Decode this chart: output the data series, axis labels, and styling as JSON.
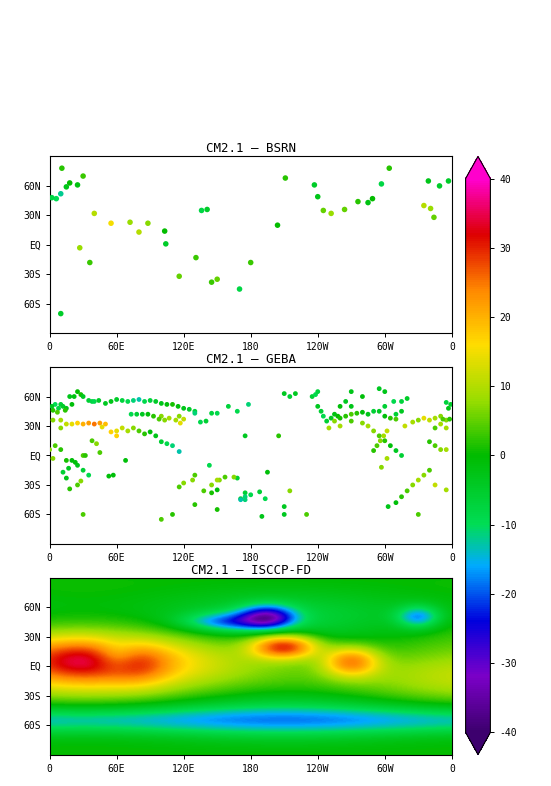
{
  "titles": [
    "CM2.1 – BSRN",
    "CM2.1 – GEBA",
    "CM2.1 – ISCCP-FD"
  ],
  "vmin": -40,
  "vmax": 40,
  "xlabel_ticks": [
    0,
    60,
    120,
    180,
    240,
    300,
    360
  ],
  "xlabel_labels": [
    "0",
    "60E",
    "120E",
    "180",
    "120W",
    "60W",
    "0"
  ],
  "yticks": [
    -60,
    -30,
    0,
    30,
    60
  ],
  "ylabels": [
    "60S",
    "30S",
    "EQ",
    "30N",
    "60N"
  ],
  "colorbar_ticks": [
    -40,
    -30,
    -20,
    -10,
    0,
    10,
    20,
    30,
    40
  ],
  "colorbar_labels": [
    "-40",
    "-30",
    "-20",
    "-10",
    "0",
    "10",
    "20",
    "30",
    "40"
  ],
  "cmap_colors": [
    [
      0.0,
      "#3d006e"
    ],
    [
      0.1,
      "#7b00c8"
    ],
    [
      0.2,
      "#0000dd"
    ],
    [
      0.3,
      "#00aaff"
    ],
    [
      0.375,
      "#00dd55"
    ],
    [
      0.5,
      "#00bb00"
    ],
    [
      0.6,
      "#99dd00"
    ],
    [
      0.7,
      "#ffdd00"
    ],
    [
      0.8,
      "#ff8800"
    ],
    [
      0.9,
      "#dd0000"
    ],
    [
      1.0,
      "#ff00cc"
    ]
  ],
  "bsrn_stations": [
    {
      "lon": 357.0,
      "lat": 65.0,
      "val": -5
    },
    {
      "lon": 339.0,
      "lat": 65.0,
      "val": -3
    },
    {
      "lon": 10.0,
      "lat": 52.0,
      "val": -12
    },
    {
      "lon": 6.0,
      "lat": 47.0,
      "val": -10
    },
    {
      "lon": 2.0,
      "lat": 48.0,
      "val": -8
    },
    {
      "lon": 349.0,
      "lat": 60.0,
      "val": -5
    },
    {
      "lon": 15.0,
      "lat": 59.0,
      "val": -3
    },
    {
      "lon": 25.0,
      "lat": 61.0,
      "val": -2
    },
    {
      "lon": 18.0,
      "lat": 63.0,
      "val": 0
    },
    {
      "lon": 30.0,
      "lat": 70.0,
      "val": 3
    },
    {
      "lon": 11.0,
      "lat": 78.0,
      "val": 2
    },
    {
      "lon": 344.0,
      "lat": 28.0,
      "val": 5
    },
    {
      "lon": 27.0,
      "lat": -3.0,
      "val": 8
    },
    {
      "lon": 40.0,
      "lat": 32.0,
      "val": 10
    },
    {
      "lon": 36.0,
      "lat": -18.0,
      "val": 3
    },
    {
      "lon": 55.0,
      "lat": 22.0,
      "val": 15
    },
    {
      "lon": 72.0,
      "lat": 23.0,
      "val": 8
    },
    {
      "lon": 80.0,
      "lat": 13.0,
      "val": 10
    },
    {
      "lon": 88.0,
      "lat": 22.0,
      "val": 7
    },
    {
      "lon": 103.0,
      "lat": 14.0,
      "val": 0
    },
    {
      "lon": 104.0,
      "lat": 1.0,
      "val": -5
    },
    {
      "lon": 116.0,
      "lat": -32.0,
      "val": 5
    },
    {
      "lon": 131.0,
      "lat": -13.0,
      "val": 3
    },
    {
      "lon": 150.0,
      "lat": -35.0,
      "val": 5
    },
    {
      "lon": 145.0,
      "lat": -38.0,
      "val": 3
    },
    {
      "lon": 141.0,
      "lat": 36.0,
      "val": -5
    },
    {
      "lon": 136.0,
      "lat": 35.0,
      "val": -8
    },
    {
      "lon": 180.0,
      "lat": -18.0,
      "val": 3
    },
    {
      "lon": 204.0,
      "lat": 20.0,
      "val": 0
    },
    {
      "lon": 211.0,
      "lat": 68.0,
      "val": 2
    },
    {
      "lon": 237.0,
      "lat": 61.0,
      "val": -5
    },
    {
      "lon": 240.0,
      "lat": 49.0,
      "val": -3
    },
    {
      "lon": 245.0,
      "lat": 35.0,
      "val": 5
    },
    {
      "lon": 252.0,
      "lat": 32.0,
      "val": 8
    },
    {
      "lon": 264.0,
      "lat": 36.0,
      "val": 5
    },
    {
      "lon": 276.0,
      "lat": 44.0,
      "val": 2
    },
    {
      "lon": 285.0,
      "lat": 43.0,
      "val": -2
    },
    {
      "lon": 289.0,
      "lat": 47.0,
      "val": 0
    },
    {
      "lon": 297.0,
      "lat": 62.0,
      "val": -8
    },
    {
      "lon": 304.0,
      "lat": 78.0,
      "val": 2
    },
    {
      "lon": 335.0,
      "lat": 40.0,
      "val": 10
    },
    {
      "lon": 341.0,
      "lat": 37.0,
      "val": 8
    },
    {
      "lon": 10.0,
      "lat": -70.0,
      "val": -5
    },
    {
      "lon": 170.0,
      "lat": -45.0,
      "val": -8
    }
  ],
  "geba_stations": [
    {
      "lon": 5.0,
      "lat": 52.0,
      "val": -10
    },
    {
      "lon": 8.0,
      "lat": 48.0,
      "val": -8
    },
    {
      "lon": 10.0,
      "lat": 52.0,
      "val": -6
    },
    {
      "lon": 12.0,
      "lat": 50.0,
      "val": -5
    },
    {
      "lon": 15.0,
      "lat": 48.0,
      "val": -3
    },
    {
      "lon": 20.0,
      "lat": 52.0,
      "val": -1
    },
    {
      "lon": 14.0,
      "lat": 46.0,
      "val": 2
    },
    {
      "lon": 7.0,
      "lat": 44.0,
      "val": 4
    },
    {
      "lon": 3.0,
      "lat": 46.0,
      "val": 2
    },
    {
      "lon": 2.0,
      "lat": 50.0,
      "val": -4
    },
    {
      "lon": 357.0,
      "lat": 48.0,
      "val": -3
    },
    {
      "lon": 355.0,
      "lat": 54.0,
      "val": -7
    },
    {
      "lon": 359.0,
      "lat": 52.0,
      "val": -5
    },
    {
      "lon": 18.0,
      "lat": 60.0,
      "val": -3
    },
    {
      "lon": 22.0,
      "lat": 60.0,
      "val": -2
    },
    {
      "lon": 25.0,
      "lat": 65.0,
      "val": 0
    },
    {
      "lon": 28.0,
      "lat": 62.0,
      "val": 1
    },
    {
      "lon": 30.0,
      "lat": 60.0,
      "val": -4
    },
    {
      "lon": 35.0,
      "lat": 56.0,
      "val": -6
    },
    {
      "lon": 38.0,
      "lat": 55.0,
      "val": -8
    },
    {
      "lon": 40.0,
      "lat": 55.0,
      "val": -9
    },
    {
      "lon": 44.0,
      "lat": 56.0,
      "val": -5
    },
    {
      "lon": 50.0,
      "lat": 53.0,
      "val": -4
    },
    {
      "lon": 55.0,
      "lat": 55.0,
      "val": -3
    },
    {
      "lon": 60.0,
      "lat": 57.0,
      "val": -5
    },
    {
      "lon": 65.0,
      "lat": 56.0,
      "val": -7
    },
    {
      "lon": 70.0,
      "lat": 55.0,
      "val": -9
    },
    {
      "lon": 75.0,
      "lat": 56.0,
      "val": -11
    },
    {
      "lon": 80.0,
      "lat": 57.0,
      "val": -13
    },
    {
      "lon": 85.0,
      "lat": 55.0,
      "val": -9
    },
    {
      "lon": 90.0,
      "lat": 56.0,
      "val": -7
    },
    {
      "lon": 95.0,
      "lat": 55.0,
      "val": -5
    },
    {
      "lon": 100.0,
      "lat": 53.0,
      "val": -3
    },
    {
      "lon": 105.0,
      "lat": 52.0,
      "val": -1
    },
    {
      "lon": 110.0,
      "lat": 52.0,
      "val": 1
    },
    {
      "lon": 115.0,
      "lat": 50.0,
      "val": -1
    },
    {
      "lon": 120.0,
      "lat": 48.0,
      "val": -3
    },
    {
      "lon": 125.0,
      "lat": 47.0,
      "val": -5
    },
    {
      "lon": 130.0,
      "lat": 45.0,
      "val": -7
    },
    {
      "lon": 3.0,
      "lat": 36.0,
      "val": 7
    },
    {
      "lon": 10.0,
      "lat": 36.0,
      "val": 9
    },
    {
      "lon": 15.0,
      "lat": 32.0,
      "val": 11
    },
    {
      "lon": 20.0,
      "lat": 32.0,
      "val": 14
    },
    {
      "lon": 25.0,
      "lat": 33.0,
      "val": 17
    },
    {
      "lon": 30.0,
      "lat": 32.0,
      "val": 20
    },
    {
      "lon": 35.0,
      "lat": 33.0,
      "val": 22
    },
    {
      "lon": 40.0,
      "lat": 32.0,
      "val": 25
    },
    {
      "lon": 45.0,
      "lat": 33.0,
      "val": 22
    },
    {
      "lon": 50.0,
      "lat": 32.0,
      "val": 19
    },
    {
      "lon": 55.0,
      "lat": 24.0,
      "val": 17
    },
    {
      "lon": 60.0,
      "lat": 25.0,
      "val": 14
    },
    {
      "lon": 65.0,
      "lat": 28.0,
      "val": 11
    },
    {
      "lon": 70.0,
      "lat": 25.0,
      "val": 9
    },
    {
      "lon": 75.0,
      "lat": 28.0,
      "val": 7
    },
    {
      "lon": 80.0,
      "lat": 25.0,
      "val": 4
    },
    {
      "lon": 85.0,
      "lat": 22.0,
      "val": 2
    },
    {
      "lon": 90.0,
      "lat": 24.0,
      "val": -1
    },
    {
      "lon": 95.0,
      "lat": 20.0,
      "val": -3
    },
    {
      "lon": 100.0,
      "lat": 14.0,
      "val": -6
    },
    {
      "lon": 105.0,
      "lat": 12.0,
      "val": -9
    },
    {
      "lon": 110.0,
      "lat": 10.0,
      "val": -11
    },
    {
      "lon": 116.0,
      "lat": 4.0,
      "val": -13
    },
    {
      "lon": 355.0,
      "lat": 36.0,
      "val": 7
    },
    {
      "lon": 350.0,
      "lat": 32.0,
      "val": 9
    },
    {
      "lon": 345.0,
      "lat": 28.0,
      "val": 4
    },
    {
      "lon": 10.0,
      "lat": 6.0,
      "val": 2
    },
    {
      "lon": 5.0,
      "lat": 10.0,
      "val": 4
    },
    {
      "lon": 0.0,
      "lat": 6.0,
      "val": 7
    },
    {
      "lon": 355.0,
      "lat": 6.0,
      "val": 9
    },
    {
      "lon": 350.0,
      "lat": 6.0,
      "val": 7
    },
    {
      "lon": 345.0,
      "lat": 10.0,
      "val": 4
    },
    {
      "lon": 340.0,
      "lat": 14.0,
      "val": 2
    },
    {
      "lon": 15.0,
      "lat": -5.0,
      "val": 1
    },
    {
      "lon": 20.0,
      "lat": -5.0,
      "val": -1
    },
    {
      "lon": 25.0,
      "lat": -10.0,
      "val": -3
    },
    {
      "lon": 30.0,
      "lat": -15.0,
      "val": -6
    },
    {
      "lon": 35.0,
      "lat": -20.0,
      "val": -9
    },
    {
      "lon": 18.0,
      "lat": -34.0,
      "val": 2
    },
    {
      "lon": 25.0,
      "lat": -30.0,
      "val": 4
    },
    {
      "lon": 28.0,
      "lat": -26.0,
      "val": 7
    },
    {
      "lon": 116.0,
      "lat": -32.0,
      "val": 4
    },
    {
      "lon": 120.0,
      "lat": -28.0,
      "val": 7
    },
    {
      "lon": 130.0,
      "lat": -20.0,
      "val": 4
    },
    {
      "lon": 145.0,
      "lat": -38.0,
      "val": 1
    },
    {
      "lon": 150.0,
      "lat": -35.0,
      "val": -1
    },
    {
      "lon": 140.0,
      "lat": 35.0,
      "val": -6
    },
    {
      "lon": 135.0,
      "lat": 34.0,
      "val": -9
    },
    {
      "lon": 145.0,
      "lat": 43.0,
      "val": -7
    },
    {
      "lon": 240.0,
      "lat": 50.0,
      "val": -4
    },
    {
      "lon": 243.0,
      "lat": 45.0,
      "val": -6
    },
    {
      "lon": 245.0,
      "lat": 40.0,
      "val": -9
    },
    {
      "lon": 248.0,
      "lat": 35.0,
      "val": -6
    },
    {
      "lon": 252.0,
      "lat": 38.0,
      "val": -4
    },
    {
      "lon": 255.0,
      "lat": 42.0,
      "val": -2
    },
    {
      "lon": 258.0,
      "lat": 40.0,
      "val": 0
    },
    {
      "lon": 260.0,
      "lat": 38.0,
      "val": 1
    },
    {
      "lon": 265.0,
      "lat": 40.0,
      "val": 2
    },
    {
      "lon": 270.0,
      "lat": 42.0,
      "val": 4
    },
    {
      "lon": 275.0,
      "lat": 43.0,
      "val": 2
    },
    {
      "lon": 280.0,
      "lat": 44.0,
      "val": -1
    },
    {
      "lon": 285.0,
      "lat": 42.0,
      "val": -3
    },
    {
      "lon": 290.0,
      "lat": 45.0,
      "val": -6
    },
    {
      "lon": 295.0,
      "lat": 45.0,
      "val": -4
    },
    {
      "lon": 300.0,
      "lat": 50.0,
      "val": -6
    },
    {
      "lon": 308.0,
      "lat": 55.0,
      "val": -9
    },
    {
      "lon": 315.0,
      "lat": 55.0,
      "val": -7
    },
    {
      "lon": 320.0,
      "lat": 58.0,
      "val": -5
    },
    {
      "lon": 260.0,
      "lat": 50.0,
      "val": -1
    },
    {
      "lon": 265.0,
      "lat": 55.0,
      "val": -4
    },
    {
      "lon": 270.0,
      "lat": 50.0,
      "val": -3
    },
    {
      "lon": 235.0,
      "lat": 60.0,
      "val": -6
    },
    {
      "lon": 238.0,
      "lat": 62.0,
      "val": -9
    },
    {
      "lon": 240.0,
      "lat": 65.0,
      "val": -7
    },
    {
      "lon": 295.0,
      "lat": 68.0,
      "val": -4
    },
    {
      "lon": 300.0,
      "lat": 65.0,
      "val": -3
    },
    {
      "lon": 280.0,
      "lat": 60.0,
      "val": -1
    },
    {
      "lon": 303.0,
      "lat": -52.0,
      "val": -3
    },
    {
      "lon": 310.0,
      "lat": -48.0,
      "val": -1
    },
    {
      "lon": 315.0,
      "lat": -42.0,
      "val": 2
    },
    {
      "lon": 320.0,
      "lat": -36.0,
      "val": 4
    },
    {
      "lon": 325.0,
      "lat": -30.0,
      "val": 7
    },
    {
      "lon": 330.0,
      "lat": -25.0,
      "val": 9
    },
    {
      "lon": 335.0,
      "lat": -20.0,
      "val": 7
    },
    {
      "lon": 340.0,
      "lat": -15.0,
      "val": 4
    },
    {
      "lon": 290.0,
      "lat": 5.0,
      "val": 2
    },
    {
      "lon": 293.0,
      "lat": 10.0,
      "val": 4
    },
    {
      "lon": 296.0,
      "lat": 15.0,
      "val": 7
    },
    {
      "lon": 299.0,
      "lat": 20.0,
      "val": 9
    },
    {
      "lon": 302.0,
      "lat": 25.0,
      "val": 11
    },
    {
      "lon": 335.0,
      "lat": 38.0,
      "val": 14
    },
    {
      "lon": 340.0,
      "lat": 36.0,
      "val": 11
    },
    {
      "lon": 345.0,
      "lat": 38.0,
      "val": 9
    },
    {
      "lon": 350.0,
      "lat": 40.0,
      "val": 7
    },
    {
      "lon": 352.0,
      "lat": 37.0,
      "val": 4
    },
    {
      "lon": 358.0,
      "lat": 37.0,
      "val": 2
    },
    {
      "lon": 130.0,
      "lat": 43.0,
      "val": -11
    },
    {
      "lon": 150.0,
      "lat": 43.0,
      "val": -9
    },
    {
      "lon": 160.0,
      "lat": 50.0,
      "val": -7
    },
    {
      "lon": 128.0,
      "lat": -25.0,
      "val": 7
    },
    {
      "lon": 157.0,
      "lat": -22.0,
      "val": 4
    },
    {
      "lon": 171.0,
      "lat": -44.0,
      "val": -4
    },
    {
      "lon": 175.0,
      "lat": -38.0,
      "val": -6
    },
    {
      "lon": 180.0,
      "lat": -40.0,
      "val": -9
    },
    {
      "lon": 188.0,
      "lat": -37.0,
      "val": -6
    },
    {
      "lon": 193.0,
      "lat": -44.0,
      "val": -9
    },
    {
      "lon": 210.0,
      "lat": -52.0,
      "val": -4
    },
    {
      "lon": 230.0,
      "lat": -60.0,
      "val": 4
    },
    {
      "lon": 152.0,
      "lat": -25.0,
      "val": 7
    },
    {
      "lon": 100.0,
      "lat": -65.0,
      "val": 4
    },
    {
      "lon": 110.0,
      "lat": -60.0,
      "val": 2
    },
    {
      "lon": 175.0,
      "lat": -45.0,
      "val": -11
    },
    {
      "lon": 210.0,
      "lat": 63.0,
      "val": -4
    },
    {
      "lon": 215.0,
      "lat": 60.0,
      "val": -6
    },
    {
      "lon": 220.0,
      "lat": 63.0,
      "val": -4
    },
    {
      "lon": 355.0,
      "lat": 28.0,
      "val": 9
    },
    {
      "lon": 10.0,
      "lat": 28.0,
      "val": 7
    },
    {
      "lon": 47.0,
      "lat": 29.0,
      "val": 14
    },
    {
      "lon": 60.0,
      "lat": 20.0,
      "val": 17
    },
    {
      "lon": 143.0,
      "lat": -10.0,
      "val": -9
    },
    {
      "lon": 205.0,
      "lat": 20.0,
      "val": 2
    },
    {
      "lon": 175.0,
      "lat": 20.0,
      "val": -4
    },
    {
      "lon": 30.0,
      "lat": 0.0,
      "val": 4
    },
    {
      "lon": 68.0,
      "lat": -5.0,
      "val": -1
    },
    {
      "lon": 270.0,
      "lat": 65.0,
      "val": -3
    },
    {
      "lon": 250.0,
      "lat": 28.0,
      "val": 9
    },
    {
      "lon": 255.0,
      "lat": 35.0,
      "val": 7
    },
    {
      "lon": 260.0,
      "lat": 30.0,
      "val": 9
    },
    {
      "lon": 168.0,
      "lat": -23.0,
      "val": -6
    },
    {
      "lon": 215.0,
      "lat": -36.0,
      "val": 7
    },
    {
      "lon": 100.0,
      "lat": 40.0,
      "val": 7
    },
    {
      "lon": 3.0,
      "lat": -3.0,
      "val": 7
    },
    {
      "lon": 355.0,
      "lat": -35.0,
      "val": 9
    },
    {
      "lon": 345.0,
      "lat": -30.0,
      "val": 11
    },
    {
      "lon": 297.0,
      "lat": -12.0,
      "val": 7
    },
    {
      "lon": 302.0,
      "lat": -3.0,
      "val": 9
    },
    {
      "lon": 113.0,
      "lat": 36.0,
      "val": 9
    },
    {
      "lon": 116.0,
      "lat": 40.0,
      "val": 7
    },
    {
      "lon": 120.0,
      "lat": 37.0,
      "val": 11
    },
    {
      "lon": 117.0,
      "lat": 33.0,
      "val": 14
    },
    {
      "lon": 107.0,
      "lat": 38.0,
      "val": 9
    },
    {
      "lon": 103.0,
      "lat": 36.0,
      "val": 7
    },
    {
      "lon": 98.0,
      "lat": 37.0,
      "val": 4
    },
    {
      "lon": 93.0,
      "lat": 40.0,
      "val": 2
    },
    {
      "lon": 88.0,
      "lat": 42.0,
      "val": -1
    },
    {
      "lon": 83.0,
      "lat": 42.0,
      "val": -4
    },
    {
      "lon": 78.0,
      "lat": 42.0,
      "val": -6
    },
    {
      "lon": 73.0,
      "lat": 42.0,
      "val": -9
    },
    {
      "lon": 53.0,
      "lat": -21.0,
      "val": -1
    },
    {
      "lon": 45.0,
      "lat": 3.0,
      "val": 4
    },
    {
      "lon": 42.0,
      "lat": 12.0,
      "val": 7
    },
    {
      "lon": 38.0,
      "lat": 15.0,
      "val": 4
    },
    {
      "lon": 32.0,
      "lat": 0.0,
      "val": 2
    },
    {
      "lon": 23.0,
      "lat": -7.0,
      "val": -1
    },
    {
      "lon": 17.0,
      "lat": -13.0,
      "val": -4
    },
    {
      "lon": 12.0,
      "lat": -17.0,
      "val": -6
    },
    {
      "lon": 15.0,
      "lat": -23.0,
      "val": -3
    },
    {
      "lon": 318.0,
      "lat": 30.0,
      "val": 11
    },
    {
      "lon": 325.0,
      "lat": 34.0,
      "val": 9
    },
    {
      "lon": 330.0,
      "lat": 36.0,
      "val": 7
    },
    {
      "lon": 310.0,
      "lat": 37.0,
      "val": 4
    },
    {
      "lon": 305.0,
      "lat": 38.0,
      "val": 2
    },
    {
      "lon": 300.0,
      "lat": 40.0,
      "val": -1
    },
    {
      "lon": 310.0,
      "lat": 42.0,
      "val": -6
    },
    {
      "lon": 315.0,
      "lat": 45.0,
      "val": -4
    },
    {
      "lon": 270.0,
      "lat": 35.0,
      "val": 4
    },
    {
      "lon": 280.0,
      "lat": 33.0,
      "val": 7
    },
    {
      "lon": 285.0,
      "lat": 30.0,
      "val": 9
    },
    {
      "lon": 290.0,
      "lat": 25.0,
      "val": 7
    },
    {
      "lon": 295.0,
      "lat": 20.0,
      "val": 4
    },
    {
      "lon": 300.0,
      "lat": 15.0,
      "val": 2
    },
    {
      "lon": 305.0,
      "lat": 10.0,
      "val": -1
    },
    {
      "lon": 310.0,
      "lat": 5.0,
      "val": -4
    },
    {
      "lon": 315.0,
      "lat": 0.0,
      "val": -6
    },
    {
      "lon": 57.0,
      "lat": -20.0,
      "val": -1
    },
    {
      "lon": 171.0,
      "lat": -45.0,
      "val": -13
    },
    {
      "lon": 175.0,
      "lat": -42.0,
      "val": -11
    },
    {
      "lon": 138.0,
      "lat": -36.0,
      "val": 4
    },
    {
      "lon": 145.0,
      "lat": -30.0,
      "val": 7
    },
    {
      "lon": 150.0,
      "lat": -25.0,
      "val": 9
    },
    {
      "lon": 165.0,
      "lat": -22.0,
      "val": 7
    },
    {
      "lon": 195.0,
      "lat": -17.0,
      "val": -1
    },
    {
      "lon": 30.0,
      "lat": -60.0,
      "val": 4
    },
    {
      "lon": 330.0,
      "lat": -60.0,
      "val": 4
    },
    {
      "lon": 168.0,
      "lat": 45.0,
      "val": -9
    },
    {
      "lon": 178.0,
      "lat": 52.0,
      "val": -11
    },
    {
      "lon": 130.0,
      "lat": -50.0,
      "val": 2
    },
    {
      "lon": 150.0,
      "lat": -55.0,
      "val": 1
    },
    {
      "lon": 190.0,
      "lat": -62.0,
      "val": -3
    },
    {
      "lon": 210.0,
      "lat": -60.0,
      "val": -4
    }
  ]
}
